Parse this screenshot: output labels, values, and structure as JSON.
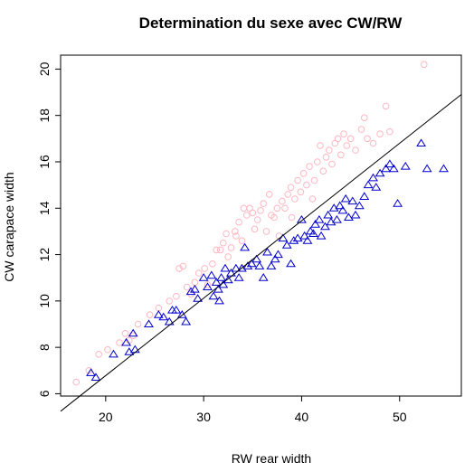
{
  "chart_data": {
    "type": "scatter",
    "title": "Determination du sexe avec CW/RW",
    "xlabel": "RW rear width",
    "ylabel": "CW carapace width",
    "xlim": [
      15.4,
      56.3
    ],
    "ylim": [
      5.9,
      20.6
    ],
    "xticks": [
      20,
      30,
      40,
      50
    ],
    "yticks": [
      6,
      8,
      10,
      12,
      14,
      16,
      18,
      20
    ],
    "grid": false,
    "legend": "none",
    "reference_line": {
      "intercept": 0.1,
      "slope": 0.334
    },
    "series": [
      {
        "marker": "circle",
        "color": "#FFB6C1",
        "points": [
          [
            17.0,
            6.5
          ],
          [
            18.3,
            7.0
          ],
          [
            19.3,
            7.7
          ],
          [
            20.2,
            7.9
          ],
          [
            21.4,
            8.2
          ],
          [
            22.0,
            8.6
          ],
          [
            22.4,
            8.3
          ],
          [
            22.8,
            8.5
          ],
          [
            23.3,
            9.0
          ],
          [
            24.5,
            9.4
          ],
          [
            25.4,
            9.7
          ],
          [
            26.5,
            10.0
          ],
          [
            27.2,
            10.2
          ],
          [
            27.5,
            11.4
          ],
          [
            27.9,
            11.5
          ],
          [
            28.3,
            10.6
          ],
          [
            28.7,
            10.3
          ],
          [
            29.1,
            10.8
          ],
          [
            29.5,
            11.2
          ],
          [
            30.1,
            11.4
          ],
          [
            30.4,
            10.7
          ],
          [
            30.9,
            11.6
          ],
          [
            31.3,
            12.2
          ],
          [
            31.7,
            12.2
          ],
          [
            32.0,
            12.5
          ],
          [
            32.3,
            12.9
          ],
          [
            32.5,
            11.9
          ],
          [
            32.8,
            12.3
          ],
          [
            33.2,
            13.0
          ],
          [
            33.3,
            12.8
          ],
          [
            33.6,
            13.4
          ],
          [
            33.9,
            12.6
          ],
          [
            34.1,
            14.0
          ],
          [
            34.4,
            13.7
          ],
          [
            34.7,
            14.0
          ],
          [
            35.0,
            13.8
          ],
          [
            35.2,
            13.1
          ],
          [
            35.5,
            13.5
          ],
          [
            35.8,
            13.9
          ],
          [
            36.1,
            14.2
          ],
          [
            36.4,
            13.0
          ],
          [
            36.7,
            14.6
          ],
          [
            36.9,
            13.7
          ],
          [
            37.2,
            13.6
          ],
          [
            37.5,
            14.0
          ],
          [
            37.7,
            12.8
          ],
          [
            38.0,
            14.3
          ],
          [
            38.3,
            14.0
          ],
          [
            38.6,
            14.6
          ],
          [
            38.9,
            14.9
          ],
          [
            39.0,
            13.6
          ],
          [
            39.3,
            14.4
          ],
          [
            39.6,
            15.2
          ],
          [
            39.9,
            14.7
          ],
          [
            40.2,
            15.5
          ],
          [
            40.5,
            15.0
          ],
          [
            40.8,
            15.8
          ],
          [
            41.1,
            14.4
          ],
          [
            41.3,
            15.2
          ],
          [
            41.6,
            16.0
          ],
          [
            41.9,
            16.7
          ],
          [
            42.2,
            15.6
          ],
          [
            42.5,
            16.2
          ],
          [
            42.8,
            16.5
          ],
          [
            43.1,
            15.9
          ],
          [
            43.4,
            16.8
          ],
          [
            43.7,
            17.0
          ],
          [
            44.0,
            16.3
          ],
          [
            44.3,
            17.2
          ],
          [
            44.6,
            16.7
          ],
          [
            45.0,
            17.0
          ],
          [
            45.5,
            16.5
          ],
          [
            46.1,
            17.4
          ],
          [
            46.4,
            17.9
          ],
          [
            46.7,
            17.0
          ],
          [
            47.3,
            16.8
          ],
          [
            48.0,
            17.2
          ],
          [
            48.6,
            18.4
          ],
          [
            49.0,
            17.3
          ],
          [
            52.5,
            20.2
          ]
        ]
      },
      {
        "marker": "triangle",
        "color": "#0000CD",
        "points": [
          [
            18.5,
            6.9
          ],
          [
            19.0,
            6.7
          ],
          [
            20.8,
            7.7
          ],
          [
            22.1,
            8.2
          ],
          [
            22.4,
            7.8
          ],
          [
            22.8,
            8.6
          ],
          [
            23.0,
            7.9
          ],
          [
            24.4,
            9.0
          ],
          [
            25.4,
            9.4
          ],
          [
            25.9,
            9.3
          ],
          [
            26.5,
            9.1
          ],
          [
            26.8,
            9.6
          ],
          [
            27.2,
            9.6
          ],
          [
            27.8,
            9.4
          ],
          [
            28.2,
            9.1
          ],
          [
            28.7,
            10.4
          ],
          [
            29.1,
            10.5
          ],
          [
            29.4,
            10.1
          ],
          [
            30.0,
            11.0
          ],
          [
            30.4,
            10.6
          ],
          [
            30.8,
            11.1
          ],
          [
            31.0,
            10.2
          ],
          [
            31.3,
            10.8
          ],
          [
            31.5,
            10.5
          ],
          [
            31.6,
            10.0
          ],
          [
            31.8,
            11.0
          ],
          [
            32.0,
            10.7
          ],
          [
            32.2,
            11.4
          ],
          [
            32.5,
            10.9
          ],
          [
            32.8,
            11.2
          ],
          [
            33.3,
            11.4
          ],
          [
            33.6,
            11.0
          ],
          [
            33.9,
            11.4
          ],
          [
            34.2,
            12.3
          ],
          [
            34.5,
            11.5
          ],
          [
            34.9,
            11.6
          ],
          [
            35.4,
            11.8
          ],
          [
            35.7,
            11.5
          ],
          [
            36.1,
            11.0
          ],
          [
            36.5,
            12.1
          ],
          [
            36.9,
            11.5
          ],
          [
            37.3,
            11.8
          ],
          [
            37.6,
            12.0
          ],
          [
            38.1,
            12.7
          ],
          [
            38.5,
            12.4
          ],
          [
            38.9,
            11.6
          ],
          [
            39.2,
            12.6
          ],
          [
            39.6,
            12.7
          ],
          [
            40.0,
            13.5
          ],
          [
            40.3,
            12.8
          ],
          [
            40.6,
            12.6
          ],
          [
            40.9,
            13.0
          ],
          [
            41.2,
            12.9
          ],
          [
            41.4,
            13.3
          ],
          [
            41.8,
            13.5
          ],
          [
            42.0,
            12.8
          ],
          [
            42.4,
            13.2
          ],
          [
            42.7,
            13.7
          ],
          [
            43.0,
            13.4
          ],
          [
            43.3,
            14.0
          ],
          [
            43.6,
            13.5
          ],
          [
            43.9,
            14.1
          ],
          [
            44.2,
            13.9
          ],
          [
            44.5,
            14.4
          ],
          [
            44.8,
            13.6
          ],
          [
            45.2,
            14.3
          ],
          [
            45.5,
            13.7
          ],
          [
            45.9,
            14.1
          ],
          [
            46.4,
            14.5
          ],
          [
            46.8,
            15.0
          ],
          [
            47.3,
            15.3
          ],
          [
            47.6,
            14.9
          ],
          [
            48.0,
            15.5
          ],
          [
            48.6,
            15.7
          ],
          [
            49.0,
            15.9
          ],
          [
            49.4,
            15.7
          ],
          [
            49.8,
            14.2
          ],
          [
            50.6,
            15.8
          ],
          [
            52.2,
            16.8
          ],
          [
            52.8,
            15.7
          ],
          [
            54.5,
            15.7
          ]
        ]
      }
    ]
  }
}
